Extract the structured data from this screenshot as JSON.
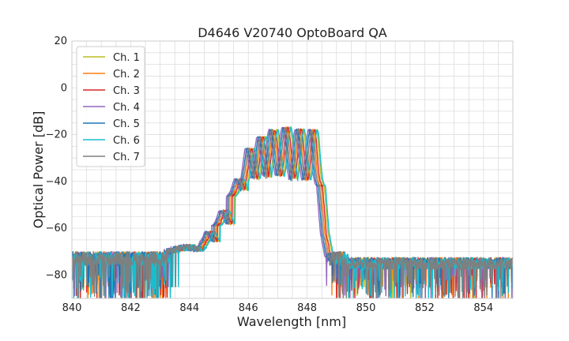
{
  "chart_data": {
    "type": "line",
    "title": "D4646 V20740 OptoBoard QA",
    "xlabel": "Wavelength [nm]",
    "ylabel": "Optical Power [dB]",
    "xlim": [
      840,
      855
    ],
    "ylim": [
      -90,
      20
    ],
    "x_ticks": [
      840,
      842,
      844,
      846,
      848,
      850,
      852,
      854
    ],
    "y_ticks": [
      20,
      0,
      -20,
      -40,
      -60,
      -80
    ],
    "x_tick_labels": [
      "840",
      "842",
      "844",
      "846",
      "848",
      "850",
      "852",
      "854"
    ],
    "y_tick_labels": [
      "20",
      "0",
      "−20",
      "−40",
      "−60",
      "−80"
    ],
    "grid": true,
    "legend_position": "top-left",
    "series": [
      {
        "name": "Ch. 1",
        "color": "#bcbd22",
        "shift": 0.16,
        "seed": 1
      },
      {
        "name": "Ch. 2",
        "color": "#ff7f0e",
        "shift": 0.05,
        "seed": 2
      },
      {
        "name": "Ch. 3",
        "color": "#d62728",
        "shift": 0.1,
        "seed": 3
      },
      {
        "name": "Ch. 4",
        "color": "#9467bd",
        "shift": -0.1,
        "seed": 4
      },
      {
        "name": "Ch. 5",
        "color": "#1f77b4",
        "shift": -0.05,
        "seed": 5
      },
      {
        "name": "Ch. 6",
        "color": "#17becf",
        "shift": 0.2,
        "seed": 6
      },
      {
        "name": "Ch. 7",
        "color": "#7f7f7f",
        "shift": 0.0,
        "seed": 7
      }
    ],
    "profile": {
      "noise_floor_left": -73,
      "noise_floor_right": -75,
      "mid_plateau": [
        [
          843.2,
          -70
        ],
        [
          843.5,
          -69
        ],
        [
          843.9,
          -68
        ],
        [
          844.3,
          -69
        ]
      ],
      "envelope": [
        [
          844.3,
          -70
        ],
        [
          844.6,
          -62
        ],
        [
          845.1,
          -53
        ],
        [
          845.6,
          -40
        ],
        [
          846.0,
          -26
        ],
        [
          846.4,
          -21
        ],
        [
          846.8,
          -18
        ],
        [
          847.3,
          -17
        ],
        [
          847.8,
          -18
        ],
        [
          848.2,
          -18
        ],
        [
          848.35,
          -30
        ],
        [
          848.55,
          -62
        ],
        [
          848.7,
          -72
        ],
        [
          849.0,
          -74
        ]
      ],
      "peak_centers": [
        844.6,
        845.1,
        845.6,
        846.0,
        846.4,
        846.8,
        847.25,
        847.7,
        848.15
      ],
      "dip_depth": [
        -66,
        -59,
        -46,
        -42,
        -42,
        -40,
        -40,
        -42,
        -42
      ]
    }
  }
}
